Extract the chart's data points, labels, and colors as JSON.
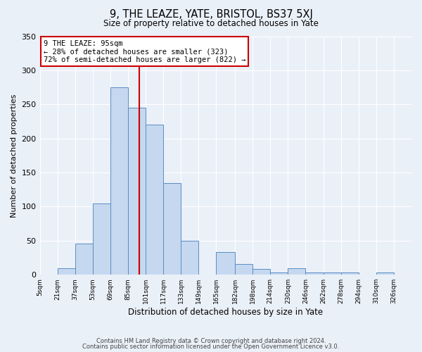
{
  "title": "9, THE LEAZE, YATE, BRISTOL, BS37 5XJ",
  "subtitle": "Size of property relative to detached houses in Yate",
  "xlabel": "Distribution of detached houses by size in Yate",
  "ylabel": "Number of detached properties",
  "bin_edges": [
    5,
    21,
    37,
    53,
    69,
    85,
    101,
    117,
    133,
    149,
    165,
    182,
    198,
    214,
    230,
    246,
    262,
    278,
    294,
    310,
    326,
    342
  ],
  "bin_values": [
    0,
    10,
    46,
    105,
    275,
    245,
    220,
    135,
    50,
    0,
    33,
    16,
    8,
    3,
    10,
    3,
    3,
    3,
    0,
    3,
    0
  ],
  "bar_facecolor": "#c5d8ef",
  "bar_edgecolor": "#5b8dc4",
  "background_color": "#eaf0f8",
  "grid_color": "#ffffff",
  "vline_x": 95,
  "vline_color": "#cc0000",
  "annotation_title": "9 THE LEAZE: 95sqm",
  "annotation_line1": "← 28% of detached houses are smaller (323)",
  "annotation_line2": "72% of semi-detached houses are larger (822) →",
  "annotation_box_edgecolor": "#cc0000",
  "ylim": [
    0,
    350
  ],
  "yticks": [
    0,
    50,
    100,
    150,
    200,
    250,
    300,
    350
  ],
  "xtick_labels": [
    "5sqm",
    "21sqm",
    "37sqm",
    "53sqm",
    "69sqm",
    "85sqm",
    "101sqm",
    "117sqm",
    "133sqm",
    "149sqm",
    "165sqm",
    "182sqm",
    "198sqm",
    "214sqm",
    "230sqm",
    "246sqm",
    "262sqm",
    "278sqm",
    "294sqm",
    "310sqm",
    "326sqm"
  ],
  "footer_line1": "Contains HM Land Registry data © Crown copyright and database right 2024.",
  "footer_line2": "Contains public sector information licensed under the Open Government Licence v3.0."
}
